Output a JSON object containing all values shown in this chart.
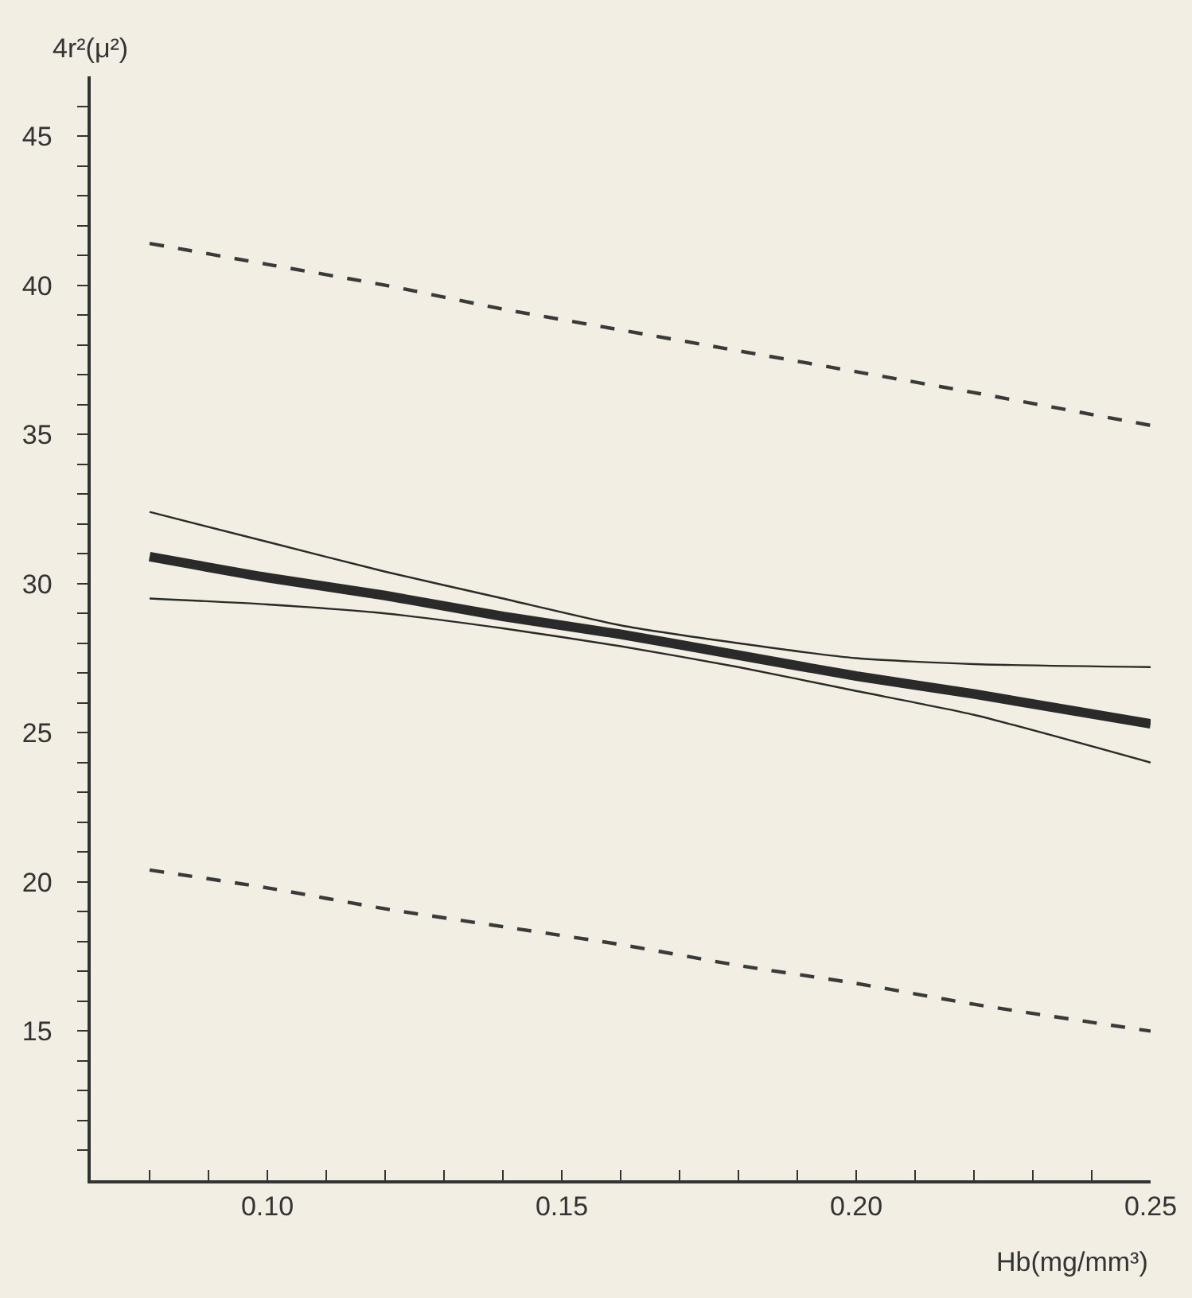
{
  "chart_data": {
    "type": "line",
    "xlabel": "Hb(mg/mm³)",
    "ylabel": "4r²(μ²)",
    "x": [
      0.08,
      0.1,
      0.12,
      0.14,
      0.16,
      0.18,
      0.2,
      0.22,
      0.25
    ],
    "series": [
      {
        "color": "#3a3a3a",
        "line_style": "dashed",
        "values": [
          41.4,
          40.7,
          40.0,
          39.2,
          38.5,
          37.8,
          37.1,
          36.4,
          35.3
        ]
      },
      {
        "color": "#2a2a2a",
        "line_style": "solid",
        "values": [
          32.4,
          31.4,
          30.4,
          29.5,
          28.6,
          28.0,
          27.5,
          27.3,
          27.2
        ]
      },
      {
        "color": "#2a2a2a",
        "line_style": "solid",
        "values": [
          30.9,
          30.2,
          29.6,
          28.9,
          28.3,
          27.6,
          26.9,
          26.3,
          25.3
        ]
      },
      {
        "color": "#2a2a2a",
        "line_style": "solid",
        "values": [
          29.5,
          29.3,
          29.0,
          28.5,
          27.9,
          27.2,
          26.4,
          25.6,
          24.0
        ]
      },
      {
        "color": "#3a3a3a",
        "line_style": "dashed",
        "values": [
          20.4,
          19.8,
          19.1,
          18.5,
          17.9,
          17.2,
          16.6,
          15.9,
          15.0
        ]
      }
    ],
    "xlim": [
      0.07,
      0.25
    ],
    "xticks": [
      {
        "value": 0.08,
        "label": null
      },
      {
        "value": 0.09,
        "label": null
      },
      {
        "value": 0.1,
        "label": "0.10"
      },
      {
        "value": 0.11,
        "label": null
      },
      {
        "value": 0.12,
        "label": null
      },
      {
        "value": 0.13,
        "label": null
      },
      {
        "value": 0.14,
        "label": null
      },
      0.15,
      {
        "value": 0.16,
        "label": null
      },
      {
        "value": 0.17,
        "label": null
      },
      {
        "value": 0.18,
        "label": null
      },
      {
        "value": 0.19,
        "label": null
      },
      {
        "value": 0.2,
        "label": "0.20"
      },
      {
        "value": 0.21,
        "label": null
      },
      {
        "value": 0.22,
        "label": null
      },
      {
        "value": 0.23,
        "label": null
      },
      {
        "value": 0.24,
        "label": null
      },
      0.25
    ],
    "ylim": [
      10,
      47
    ],
    "yticks": [
      {
        "value": 11,
        "label": null
      },
      {
        "value": 12,
        "label": null
      },
      {
        "value": 13,
        "label": null
      },
      {
        "value": 14,
        "label": null
      },
      15,
      {
        "value": 16,
        "label": null
      },
      {
        "value": 17,
        "label": null
      },
      {
        "value": 18,
        "label": null
      },
      {
        "value": 19,
        "label": null
      },
      20,
      {
        "value": 21,
        "label": null
      },
      {
        "value": 22,
        "label": null
      },
      {
        "value": 23,
        "label": null
      },
      {
        "value": 24,
        "label": null
      },
      25,
      {
        "value": 26,
        "label": null
      },
      {
        "value": 27,
        "label": null
      },
      {
        "value": 28,
        "label": null
      },
      {
        "value": 29,
        "label": null
      },
      30,
      {
        "value": 31,
        "label": null
      },
      {
        "value": 32,
        "label": null
      },
      {
        "value": 33,
        "label": null
      },
      {
        "value": 34,
        "label": null
      },
      35,
      {
        "value": 36,
        "label": null
      },
      {
        "value": 37,
        "label": null
      },
      {
        "value": 38,
        "label": null
      },
      {
        "value": 39,
        "label": null
      },
      40,
      {
        "value": 41,
        "label": null
      },
      {
        "value": 42,
        "label": null
      },
      {
        "value": 43,
        "label": null
      },
      {
        "value": 44,
        "label": null
      },
      45,
      {
        "value": 46,
        "label": null
      }
    ],
    "grid": false,
    "marker": "none"
  }
}
